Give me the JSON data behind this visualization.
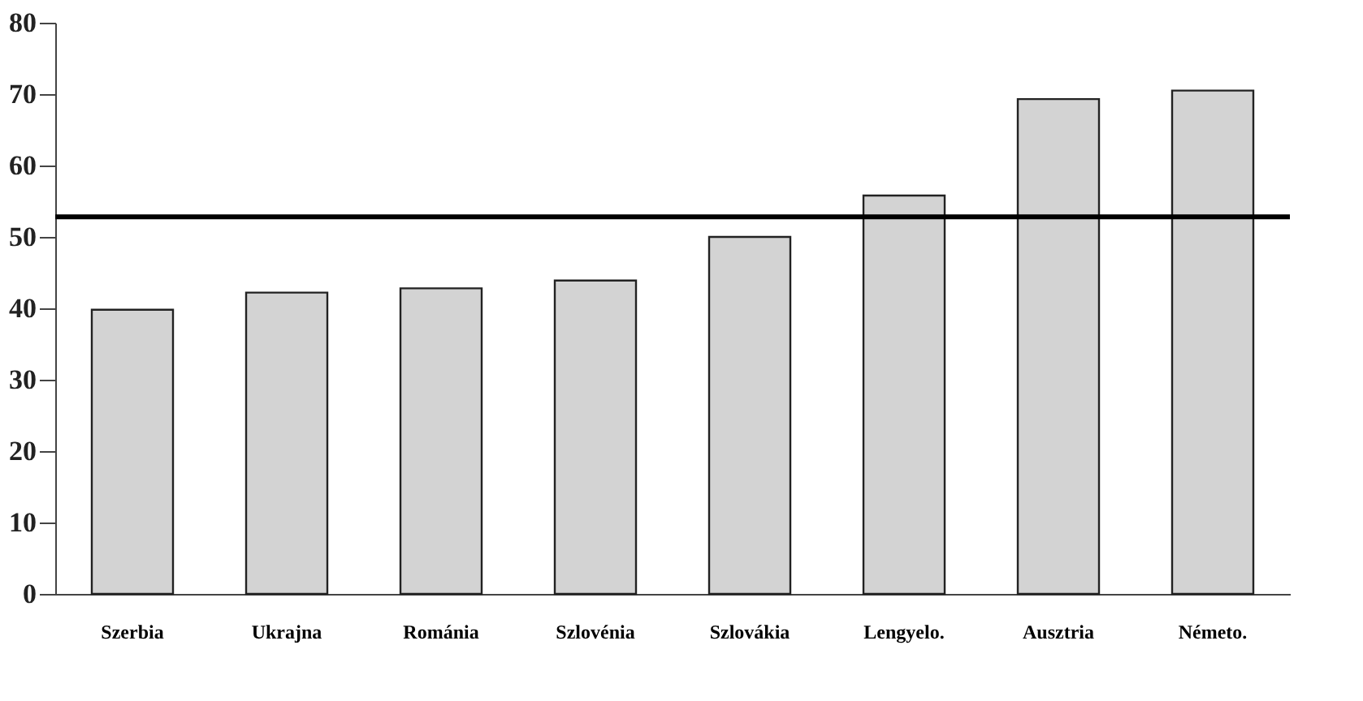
{
  "chart_data": {
    "type": "bar",
    "categories": [
      "Szerbia",
      "Ukrajna",
      "Románia",
      "Szlovénia",
      "Szlovákia",
      "Lengyelo.",
      "Ausztria",
      "Németo."
    ],
    "values": [
      39.8,
      42.2,
      42.8,
      43.9,
      50.0,
      55.8,
      69.3,
      70.5
    ],
    "color": "#d3d3d3",
    "ylim": [
      0,
      80
    ],
    "yticks": [
      0,
      10,
      20,
      30,
      40,
      50,
      60,
      70,
      80
    ],
    "ref_lines": [
      {
        "axis": "y",
        "value": 52.8,
        "color": "#000000"
      }
    ],
    "grid": false
  }
}
